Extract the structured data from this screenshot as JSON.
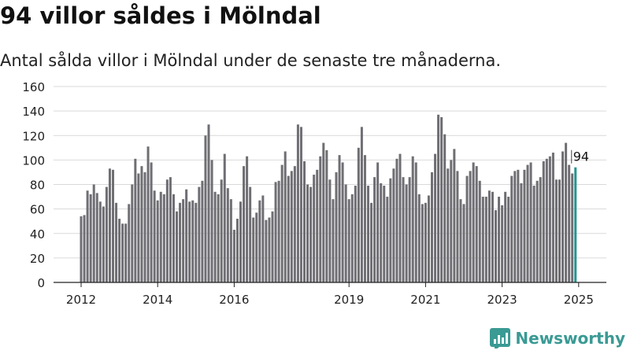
{
  "header": {
    "title": "94 villor såldes i Mölndal",
    "subtitle": "Antal sålda villor i Mölndal under de senaste tre månaderna."
  },
  "brand": {
    "name": "Newsworthy",
    "color": "#3a9a94"
  },
  "colors": {
    "bar": "#6f6e73",
    "highlight": "#23958f",
    "grid": "#d9d9d9",
    "axis": "#222222"
  },
  "chart_data": {
    "type": "bar",
    "title": "94 villor såldes i Mölndal",
    "subtitle": "Antal sålda villor i Mölndal under de senaste tre månaderna.",
    "xlabel": "",
    "ylabel": "",
    "ylim": [
      0,
      160
    ],
    "yticks": [
      0,
      20,
      40,
      60,
      80,
      100,
      120,
      140,
      160
    ],
    "xticks": [
      "2012",
      "2014",
      "2016",
      "2019",
      "2021",
      "2023",
      "2025"
    ],
    "grid": true,
    "legend": "none",
    "period": "monthly, 2012-01 to 2025-01",
    "highlight_label": "94",
    "values": [
      54,
      55,
      75,
      72,
      80,
      73,
      66,
      62,
      78,
      93,
      92,
      65,
      52,
      48,
      48,
      64,
      80,
      101,
      89,
      95,
      90,
      111,
      98,
      75,
      67,
      74,
      72,
      84,
      86,
      72,
      58,
      65,
      68,
      76,
      66,
      67,
      65,
      78,
      83,
      120,
      129,
      100,
      74,
      72,
      84,
      105,
      77,
      68,
      43,
      52,
      66,
      95,
      103,
      78,
      53,
      57,
      67,
      71,
      51,
      53,
      58,
      82,
      83,
      96,
      107,
      87,
      91,
      95,
      129,
      127,
      99,
      80,
      78,
      88,
      92,
      103,
      114,
      108,
      84,
      68,
      90,
      104,
      98,
      80,
      68,
      72,
      79,
      110,
      127,
      104,
      79,
      65,
      86,
      98,
      81,
      79,
      70,
      85,
      93,
      101,
      105,
      86,
      80,
      86,
      103,
      98,
      72,
      64,
      65,
      71,
      90,
      105,
      137,
      135,
      121,
      93,
      100,
      109,
      91,
      68,
      64,
      87,
      91,
      98,
      95,
      83,
      70,
      70,
      75,
      74,
      59,
      70,
      63,
      74,
      70,
      87,
      91,
      92,
      81,
      92,
      96,
      98,
      79,
      83,
      86,
      99,
      101,
      103,
      106,
      84,
      84,
      107,
      114,
      96,
      89,
      94
    ]
  }
}
